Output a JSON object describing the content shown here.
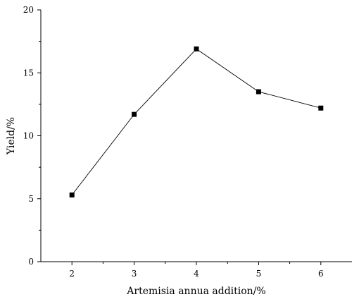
{
  "chart_data": {
    "type": "line",
    "title": "",
    "xlabel": "Artemisia annua addition/%",
    "ylabel": "Yield/%",
    "x": [
      2,
      3,
      4,
      5,
      6
    ],
    "series": [
      {
        "values": [
          5.3,
          11.7,
          16.9,
          13.5,
          12.2
        ]
      }
    ],
    "xticks": [
      2,
      3,
      4,
      5,
      6
    ],
    "yticks": [
      0,
      5,
      10,
      15,
      20
    ],
    "xlim": [
      1.5,
      6.5
    ],
    "ylim": [
      0,
      20
    ],
    "grid": false,
    "marker": "square",
    "colors": {
      "line": "#000000",
      "marker": "#000000",
      "axis": "#000000"
    }
  }
}
